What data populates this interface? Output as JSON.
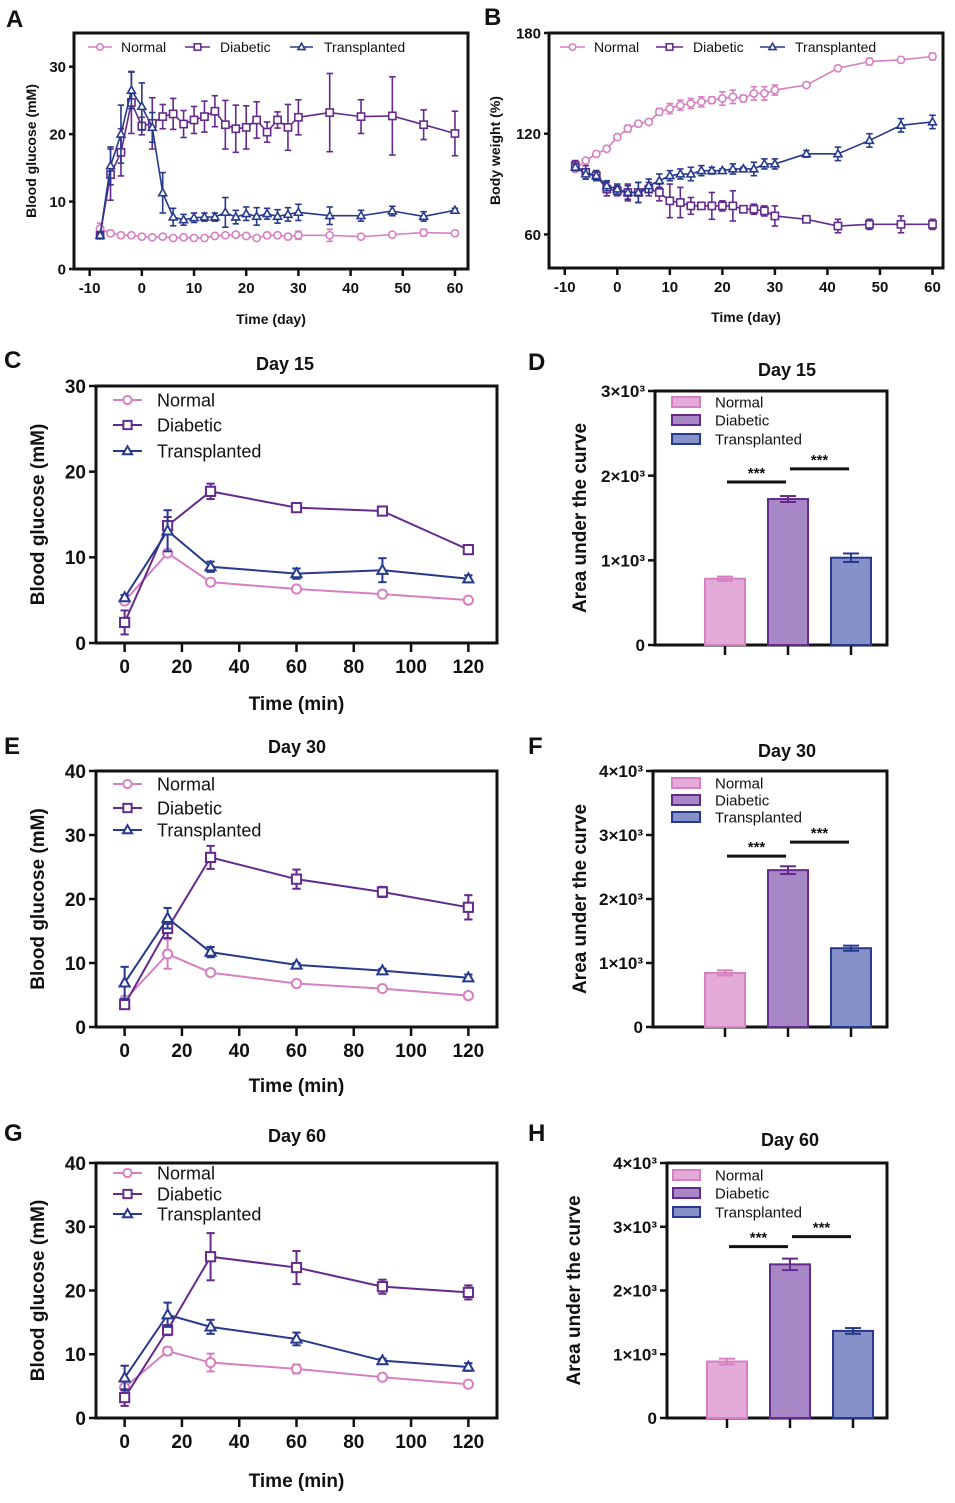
{
  "colors": {
    "Normal": "#d77fc3",
    "Diabetic": "#642a8c",
    "Transplanted": "#26398c",
    "Normal_fill": "#e4abd8",
    "Diabetic_fill": "#a787c6",
    "Transplanted_fill": "#8591c8"
  },
  "chart_data": [
    {
      "panel": "A",
      "type": "line",
      "title": "",
      "xlabel": "Time (day)",
      "ylabel": "Blood glucose (mM)",
      "xlim": [
        -13,
        62.5
      ],
      "ylim": [
        0,
        35
      ],
      "xticks": [
        -10,
        0,
        10,
        20,
        30,
        40,
        50,
        60
      ],
      "yticks": [
        0,
        10,
        20,
        30
      ],
      "legend": "top",
      "grid": false,
      "series": [
        {
          "name": "Normal",
          "marker": "circle",
          "x": [
            -8,
            -6,
            -4,
            -2,
            0,
            2,
            4,
            6,
            8,
            10,
            12,
            14,
            16,
            18,
            20,
            22,
            24,
            26,
            28,
            30,
            36,
            42,
            48,
            54,
            60
          ],
          "y": [
            6,
            5.3,
            5,
            5,
            4.8,
            4.7,
            4.8,
            4.6,
            4.7,
            4.6,
            4.6,
            4.9,
            5,
            5.1,
            4.9,
            4.6,
            5,
            5,
            4.8,
            5,
            5,
            4.8,
            5.1,
            5.4,
            5.3
          ],
          "err": [
            0.8,
            0.4,
            0.4,
            0.3,
            0.2,
            0.2,
            0.3,
            0.2,
            0.2,
            0.2,
            0.2,
            0.2,
            0.2,
            0.2,
            0.2,
            0.2,
            0.4,
            0.2,
            0.3,
            0.6,
            0.9,
            0.2,
            0.3,
            0.5,
            0.2
          ]
        },
        {
          "name": "Diabetic",
          "marker": "square",
          "x": [
            -8,
            -6,
            -4,
            -2,
            0,
            2,
            4,
            6,
            8,
            10,
            12,
            14,
            16,
            18,
            20,
            22,
            24,
            26,
            28,
            30,
            36,
            42,
            48,
            54,
            60
          ],
          "y": [
            5,
            14,
            17.3,
            24.7,
            21.2,
            21.6,
            22.6,
            23,
            21.5,
            22.1,
            22.6,
            23.4,
            21.4,
            20.8,
            21,
            22.1,
            20.3,
            22.1,
            21,
            22.5,
            23.2,
            22.6,
            22.7,
            21.4,
            20.1
          ],
          "err": [
            0.5,
            3.8,
            3.5,
            4.6,
            1.3,
            3.8,
            1.8,
            2.3,
            2,
            2,
            2.3,
            2.3,
            3.6,
            3.5,
            3.2,
            2.7,
            1.5,
            1.2,
            3.4,
            2.6,
            5.8,
            2.5,
            5.8,
            2.2,
            3.3
          ]
        },
        {
          "name": "Transplanted",
          "marker": "triangle",
          "x": [
            -8,
            -6,
            -4,
            -2,
            0,
            2,
            4,
            6,
            8,
            10,
            12,
            14,
            16,
            18,
            20,
            22,
            24,
            26,
            28,
            30,
            36,
            42,
            48,
            54,
            60
          ],
          "y": [
            5,
            15.3,
            20,
            26.5,
            24.1,
            21,
            11.3,
            7.7,
            7.3,
            7.6,
            7.7,
            7.7,
            8.4,
            7.7,
            8.2,
            7.8,
            8.2,
            7.8,
            8.1,
            8.4,
            7.9,
            7.9,
            8.6,
            7.8,
            8.7
          ],
          "err": [
            0.3,
            2.8,
            4.3,
            2.7,
            3.5,
            2.2,
            3,
            1.3,
            0.8,
            0.7,
            0.6,
            0.6,
            2.2,
            1,
            1,
            1.3,
            0.8,
            1,
            1,
            1.2,
            1.3,
            0.8,
            0.7,
            0.7,
            0.3
          ]
        }
      ]
    },
    {
      "panel": "B",
      "type": "line",
      "title": "",
      "xlabel": "Time (day)",
      "ylabel": "Body weight (%)",
      "xlim": [
        -13,
        62
      ],
      "ylim": [
        40,
        180
      ],
      "xticks": [
        -10,
        0,
        10,
        20,
        30,
        40,
        50,
        60
      ],
      "yticks": [
        60,
        120,
        180
      ],
      "legend": "top",
      "grid": false,
      "series": [
        {
          "name": "Normal",
          "marker": "circle",
          "x": [
            -8,
            -6,
            -4,
            -2,
            0,
            2,
            4,
            6,
            8,
            10,
            12,
            14,
            16,
            18,
            20,
            22,
            24,
            26,
            28,
            30,
            36,
            42,
            48,
            54,
            60
          ],
          "y": [
            99,
            104,
            108,
            111,
            118,
            123,
            126,
            127,
            133,
            135,
            137,
            138,
            139,
            140,
            141,
            142,
            141,
            144,
            144,
            146,
            149,
            159,
            163,
            164,
            166
          ],
          "err": [
            1,
            1,
            1,
            1,
            1,
            2,
            1,
            1,
            2,
            3,
            3,
            3,
            3,
            2,
            4,
            4,
            2,
            4,
            4,
            3,
            1,
            1,
            2,
            1,
            2
          ]
        },
        {
          "name": "Diabetic",
          "marker": "square",
          "x": [
            -8,
            -6,
            -4,
            -2,
            0,
            2,
            4,
            6,
            8,
            10,
            12,
            14,
            16,
            18,
            20,
            22,
            24,
            26,
            28,
            30,
            36,
            42,
            48,
            54,
            60
          ],
          "y": [
            101,
            97,
            95,
            87,
            86,
            85,
            85,
            87,
            85,
            80,
            79,
            77,
            77,
            77,
            77,
            77,
            75,
            75,
            74,
            71,
            69,
            65,
            66,
            66,
            66
          ],
          "err": [
            3,
            4,
            3,
            4,
            3,
            5,
            6,
            4,
            5,
            10,
            9,
            5,
            2,
            8,
            3,
            9,
            1,
            3,
            3,
            6,
            2,
            4,
            3,
            5,
            3
          ]
        },
        {
          "name": "Transplanted",
          "marker": "triangle",
          "x": [
            -8,
            -6,
            -4,
            -2,
            0,
            2,
            4,
            6,
            8,
            10,
            12,
            14,
            16,
            18,
            20,
            22,
            24,
            26,
            28,
            30,
            36,
            42,
            48,
            54,
            60
          ],
          "y": [
            100,
            96,
            95,
            89,
            87,
            85,
            85,
            89,
            92,
            95,
            96,
            96,
            98,
            98,
            98,
            99,
            99,
            99,
            102,
            102,
            108,
            108,
            116,
            125,
            127
          ],
          "err": [
            2,
            3,
            3,
            3,
            3,
            4,
            6,
            4,
            4,
            3,
            3,
            4,
            3,
            2,
            1,
            3,
            1,
            4,
            3,
            3,
            2,
            4,
            4,
            4,
            4
          ]
        }
      ]
    },
    {
      "panel": "C",
      "type": "line",
      "title": "Day 15",
      "xlabel": "Time (min)",
      "ylabel": "Blood glucose (mM)",
      "xlim": [
        -10,
        130
      ],
      "ylim": [
        0,
        30
      ],
      "xticks": [
        0,
        20,
        40,
        60,
        80,
        100,
        120
      ],
      "yticks": [
        0,
        10,
        20,
        30
      ],
      "legend": "top-left",
      "grid": false,
      "series": [
        {
          "name": "Normal",
          "marker": "circle",
          "x": [
            0,
            15,
            30,
            60,
            90,
            120
          ],
          "y": [
            4.9,
            10.5,
            7.1,
            6.3,
            5.7,
            5.0
          ],
          "err": [
            0.3,
            0.3,
            0.3,
            0.3,
            0.3,
            0.2
          ]
        },
        {
          "name": "Diabetic",
          "marker": "square",
          "x": [
            0,
            15,
            30,
            60,
            90,
            120
          ],
          "y": [
            2.4,
            13.7,
            17.7,
            15.8,
            15.4,
            10.9
          ],
          "err": [
            1.4,
            1.0,
            0.9,
            0.3,
            0.4,
            0.3
          ]
        },
        {
          "name": "Transplanted",
          "marker": "triangle",
          "x": [
            0,
            15,
            30,
            60,
            90,
            120
          ],
          "y": [
            5.3,
            13.1,
            8.9,
            8.1,
            8.5,
            7.5
          ],
          "err": [
            0.3,
            2.4,
            0.6,
            0.6,
            1.4,
            0.4
          ]
        }
      ]
    },
    {
      "panel": "D",
      "type": "bar",
      "title": "Day 15",
      "xlabel": "",
      "ylabel": "Area under the curve",
      "ylim": [
        0,
        3000
      ],
      "yticks": [
        0,
        1000,
        2000,
        3000
      ],
      "ytick_labels": [
        "0",
        "1×10³",
        "2×10³",
        "3×10³"
      ],
      "legend": "top-left",
      "grid": false,
      "categories": [
        "Normal",
        "Diabetic",
        "Transplanted"
      ],
      "values": [
        783,
        1724,
        1031
      ],
      "errors": [
        25,
        35,
        50
      ],
      "annotations": [
        {
          "from": 0,
          "to": 1,
          "label": "***",
          "y": 1925
        },
        {
          "from": 1,
          "to": 2,
          "label": "***",
          "y": 2080
        }
      ]
    },
    {
      "panel": "E",
      "type": "line",
      "title": "Day 30",
      "xlabel": "Time (min)",
      "ylabel": "Blood glucose (mM)",
      "xlim": [
        -10,
        130
      ],
      "ylim": [
        0,
        40
      ],
      "xticks": [
        0,
        20,
        40,
        60,
        80,
        100,
        120
      ],
      "yticks": [
        0,
        10,
        20,
        30,
        40
      ],
      "legend": "top-left",
      "grid": false,
      "series": [
        {
          "name": "Normal",
          "marker": "circle",
          "x": [
            0,
            15,
            30,
            60,
            90,
            120
          ],
          "y": [
            4.2,
            11.4,
            8.5,
            6.8,
            6.0,
            4.9
          ],
          "err": [
            0.3,
            2.3,
            0.3,
            0.4,
            0.3,
            0.3
          ]
        },
        {
          "name": "Diabetic",
          "marker": "square",
          "x": [
            0,
            15,
            30,
            60,
            90,
            120
          ],
          "y": [
            3.5,
            15.4,
            26.5,
            23.1,
            21.1,
            18.7
          ],
          "err": [
            0.5,
            1.5,
            1.8,
            1.5,
            0.8,
            1.9
          ]
        },
        {
          "name": "Transplanted",
          "marker": "triangle",
          "x": [
            0,
            15,
            30,
            60,
            90,
            120
          ],
          "y": [
            6.9,
            17.0,
            11.7,
            9.7,
            8.8,
            7.7
          ],
          "err": [
            2.5,
            1.6,
            0.8,
            0.3,
            0.3,
            0.5
          ]
        }
      ]
    },
    {
      "panel": "F",
      "type": "bar",
      "title": "Day 30",
      "xlabel": "",
      "ylabel": "Area under the curve",
      "ylim": [
        0,
        4000
      ],
      "yticks": [
        0,
        1000,
        2000,
        3000,
        4000
      ],
      "ytick_labels": [
        "0",
        "1×10³",
        "2×10³",
        "3×10³",
        "4×10³"
      ],
      "legend": "top-left",
      "grid": false,
      "categories": [
        "Normal",
        "Diabetic",
        "Transplanted"
      ],
      "values": [
        845,
        2451,
        1231
      ],
      "errors": [
        40,
        60,
        40
      ],
      "annotations": [
        {
          "from": 0,
          "to": 1,
          "label": "***",
          "y": 2670
        },
        {
          "from": 1,
          "to": 2,
          "label": "***",
          "y": 2889
        }
      ]
    },
    {
      "panel": "G",
      "type": "line",
      "title": "Day 60",
      "xlabel": "Time (min)",
      "ylabel": "Blood glucose (mM)",
      "xlim": [
        -10,
        130
      ],
      "ylim": [
        0,
        40
      ],
      "xticks": [
        0,
        20,
        40,
        60,
        80,
        100,
        120
      ],
      "yticks": [
        0,
        10,
        20,
        30,
        40
      ],
      "legend": "top-left",
      "grid": false,
      "series": [
        {
          "name": "Normal",
          "marker": "circle",
          "x": [
            0,
            15,
            30,
            60,
            90,
            120
          ],
          "y": [
            4.8,
            10.5,
            8.7,
            7.7,
            6.4,
            5.3
          ],
          "err": [
            0.5,
            0.6,
            1.4,
            0.7,
            0.3,
            0.3
          ]
        },
        {
          "name": "Diabetic",
          "marker": "square",
          "x": [
            0,
            15,
            30,
            60,
            90,
            120
          ],
          "y": [
            3.2,
            13.8,
            25.3,
            23.6,
            20.6,
            19.7
          ],
          "err": [
            1.3,
            0.8,
            3.7,
            2.6,
            1.1,
            1.1
          ]
        },
        {
          "name": "Transplanted",
          "marker": "triangle",
          "x": [
            0,
            15,
            30,
            60,
            90,
            120
          ],
          "y": [
            6.3,
            16.2,
            14.3,
            12.4,
            9.0,
            8.0
          ],
          "err": [
            1.9,
            1.9,
            1.1,
            1.0,
            0.3,
            0.6
          ]
        }
      ]
    },
    {
      "panel": "H",
      "type": "bar",
      "title": "Day 60",
      "xlabel": "",
      "ylabel": "Area under the curve",
      "ylim": [
        0,
        4000
      ],
      "yticks": [
        0,
        1000,
        2000,
        3000,
        4000
      ],
      "ytick_labels": [
        "0",
        "1×10³",
        "2×10³",
        "3×10³",
        "4×10³"
      ],
      "legend": "top-left",
      "grid": false,
      "categories": [
        "Normal",
        "Diabetic",
        "Transplanted"
      ],
      "values": [
        886,
        2410,
        1366
      ],
      "errors": [
        45,
        90,
        45
      ],
      "annotations": [
        {
          "from": 0,
          "to": 1,
          "label": "***",
          "y": 2689
        },
        {
          "from": 1,
          "to": 2,
          "label": "***",
          "y": 2846
        }
      ]
    }
  ]
}
